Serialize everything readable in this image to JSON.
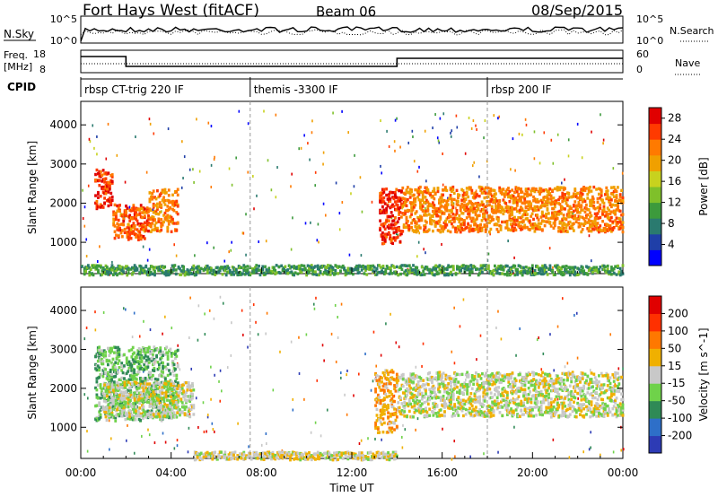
{
  "header": {
    "station": "Fort Hays West (fitACF)",
    "beam": "Beam 06",
    "date": "08/Sep/2015"
  },
  "nsky_panel": {
    "left_label": "N.Sky",
    "left_ticks": [
      "10^5",
      "10^0"
    ],
    "right_label": "N.Search",
    "right_ticks": [
      "10^5",
      "10^0"
    ]
  },
  "freq_panel": {
    "left_label_line1": "Freq.",
    "left_label_line2": "[MHz]",
    "left_ticks": [
      "18",
      "8"
    ],
    "right_label": "Nave",
    "right_ticks": [
      "60",
      "0"
    ]
  },
  "cpid": {
    "label": "CPID",
    "segments": [
      {
        "label": "rbsp CT-trig 220 IF",
        "start_hr": 0
      },
      {
        "label": "themis -3300 IF",
        "start_hr": 7.5
      },
      {
        "label": "rbsp 200 IF",
        "start_hr": 18
      }
    ]
  },
  "chart_data": [
    {
      "type": "heatmap",
      "title": "",
      "xlabel": "",
      "ylabel": "Slant Range [km]",
      "x_unit": "hours UT",
      "xlim": [
        0,
        24
      ],
      "ylim": [
        200,
        4600
      ],
      "yticks": [
        "1000",
        "2000",
        "3000",
        "4000"
      ],
      "colorbar": {
        "label": "Power [dB]",
        "ticks": [
          "4",
          "8",
          "12",
          "16",
          "20",
          "24",
          "28"
        ],
        "colors": [
          "#0000ff",
          "#1f3fa8",
          "#2a7a6f",
          "#3c9a3c",
          "#7fc02a",
          "#c8d21e",
          "#f0a000",
          "#ff7a00",
          "#ff3a00",
          "#e00000"
        ],
        "range": [
          0,
          30
        ]
      },
      "features": [
        {
          "desc": "echo band",
          "t0": 0.6,
          "t1": 1.4,
          "r0": 1900,
          "r1": 2900,
          "val": 26
        },
        {
          "desc": "echo band",
          "t0": 1.4,
          "t1": 3.0,
          "r0": 1100,
          "r1": 2000,
          "val": 24
        },
        {
          "desc": "echo band",
          "t0": 3.0,
          "t1": 4.3,
          "r0": 1300,
          "r1": 2400,
          "val": 22
        },
        {
          "desc": "echo band",
          "t0": 13.2,
          "t1": 14.2,
          "r0": 1000,
          "r1": 2400,
          "val": 27
        },
        {
          "desc": "echo band",
          "t0": 14.2,
          "t1": 24.0,
          "r0": 1300,
          "r1": 2450,
          "val": 22
        },
        {
          "desc": "ground scatter",
          "t0": 0.0,
          "t1": 24.0,
          "r0": 200,
          "r1": 450,
          "val": 10
        }
      ]
    },
    {
      "type": "heatmap",
      "title": "",
      "xlabel": "Time UT",
      "ylabel": "Slant Range [km]",
      "x_unit": "hours UT",
      "xlim": [
        0,
        24
      ],
      "ylim": [
        200,
        4600
      ],
      "xticks": [
        "00:00",
        "04:00",
        "08:00",
        "12:00",
        "16:00",
        "20:00",
        "00:00"
      ],
      "yticks": [
        "1000",
        "2000",
        "3000",
        "4000"
      ],
      "colorbar": {
        "label": "Velocity [m s^-1]",
        "ticks": [
          "200",
          "100",
          "50",
          "15",
          "-15",
          "-50",
          "-100",
          "-200"
        ],
        "colors": [
          "#2d3bb5",
          "#2e6fc8",
          "#2f8a56",
          "#6fd24a",
          "#c8c8c8",
          "#f0b000",
          "#ff7800",
          "#ff3000",
          "#e00000"
        ],
        "range": [
          -250,
          250
        ]
      },
      "features": [
        {
          "desc": "mixed velocity",
          "t0": 0.6,
          "t1": 4.3,
          "r0": 1200,
          "r1": 3100,
          "val": -60
        },
        {
          "desc": "low velocity",
          "t0": 1.0,
          "t1": 5.0,
          "r0": 1300,
          "r1": 2200,
          "val": 0
        },
        {
          "desc": "positive velocity",
          "t0": 13.0,
          "t1": 14.0,
          "r0": 900,
          "r1": 2500,
          "val": 60
        },
        {
          "desc": "low velocity",
          "t0": 14.0,
          "t1": 24.0,
          "r0": 1300,
          "r1": 2450,
          "val": 0
        },
        {
          "desc": "ground scatter",
          "t0": 5.0,
          "t1": 14.0,
          "r0": 200,
          "r1": 400,
          "val": 20
        }
      ]
    }
  ]
}
